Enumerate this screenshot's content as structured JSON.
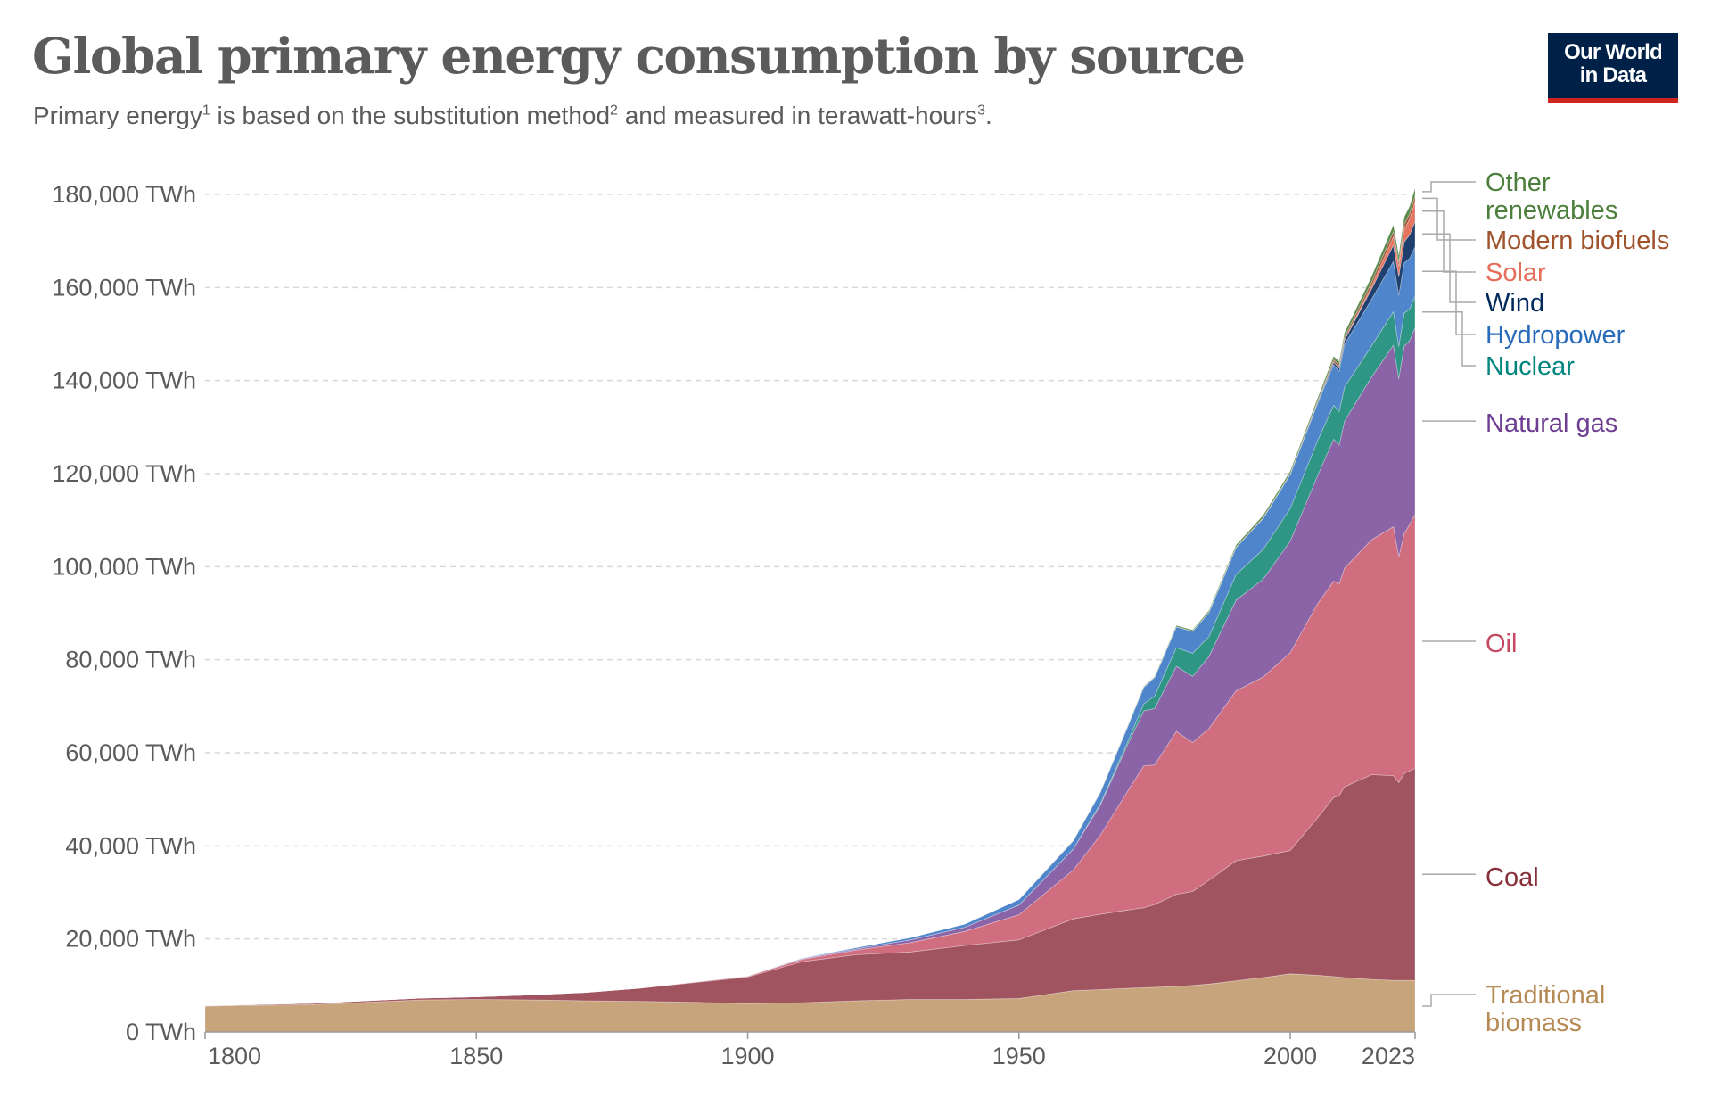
{
  "header": {
    "title": "Global primary energy consumption by source",
    "subtitle_parts": [
      "Primary energy",
      "1",
      " is based on the substitution method",
      "2",
      " and measured in terawatt-hours",
      "3",
      "."
    ],
    "logo_text": [
      "Our World",
      "in Data"
    ]
  },
  "chart_data": {
    "type": "area",
    "stacked": true,
    "title": "Global primary energy consumption by source",
    "xlabel": "",
    "ylabel": "",
    "xlim": [
      1800,
      2023
    ],
    "ylim": [
      0,
      180000
    ],
    "grid": "horizontal dashed",
    "legend": "right, inline labels",
    "y_ticks": [
      {
        "value": 0,
        "label": "0 TWh"
      },
      {
        "value": 20000,
        "label": "20,000 TWh"
      },
      {
        "value": 40000,
        "label": "40,000 TWh"
      },
      {
        "value": 60000,
        "label": "60,000 TWh"
      },
      {
        "value": 80000,
        "label": "80,000 TWh"
      },
      {
        "value": 100000,
        "label": "100,000 TWh"
      },
      {
        "value": 120000,
        "label": "120,000 TWh"
      },
      {
        "value": 140000,
        "label": "140,000 TWh"
      },
      {
        "value": 160000,
        "label": "160,000 TWh"
      },
      {
        "value": 180000,
        "label": "180,000 TWh"
      }
    ],
    "x_ticks": [
      {
        "value": 1800,
        "label": "1800"
      },
      {
        "value": 1850,
        "label": "1850"
      },
      {
        "value": 1900,
        "label": "1900"
      },
      {
        "value": 1950,
        "label": "1950"
      },
      {
        "value": 2000,
        "label": "2000"
      },
      {
        "value": 2023,
        "label": "2023"
      }
    ],
    "x": [
      1800,
      1820,
      1840,
      1850,
      1860,
      1870,
      1880,
      1890,
      1900,
      1910,
      1920,
      1930,
      1940,
      1950,
      1960,
      1965,
      1970,
      1973,
      1975,
      1979,
      1982,
      1985,
      1990,
      1995,
      2000,
      2005,
      2008,
      2009,
      2010,
      2015,
      2019,
      2020,
      2021,
      2022,
      2023
    ],
    "series": [
      {
        "name": "Traditional biomass",
        "label_lines": [
          "Traditional",
          "biomass"
        ],
        "color": "#c8a47c",
        "label_color": "#b58a55",
        "values": [
          5556,
          5900,
          6900,
          7000,
          6900,
          6700,
          6600,
          6400,
          6100,
          6300,
          6700,
          7000,
          7000,
          7200,
          8900,
          9100,
          9400,
          9500,
          9600,
          9800,
          10000,
          10300,
          11000,
          11700,
          12500,
          12200,
          11900,
          11800,
          11700,
          11300,
          11100,
          11100,
          11100,
          11100,
          11111
        ]
      },
      {
        "name": "Coal",
        "label_lines": [
          "Coal"
        ],
        "color": "#a0545f",
        "label_color": "#883039",
        "values": [
          97,
          300,
          400,
          570,
          1100,
          1800,
          2800,
          4200,
          5700,
          8800,
          9900,
          10200,
          11600,
          12600,
          15400,
          16200,
          16800,
          17200,
          17800,
          19800,
          20200,
          22300,
          25800,
          26100,
          26500,
          33800,
          38500,
          39000,
          41000,
          44000,
          44000,
          42500,
          44500,
          45000,
          45565
        ]
      },
      {
        "name": "Oil",
        "label_lines": [
          "Oil"
        ],
        "color": "#d06e80",
        "label_color": "#c44860",
        "values": [
          0,
          0,
          0,
          0,
          0,
          6,
          40,
          90,
          180,
          500,
          1000,
          2000,
          3000,
          5400,
          10500,
          17000,
          25500,
          30500,
          30000,
          35000,
          32000,
          32600,
          36500,
          38500,
          42500,
          46000,
          46500,
          45500,
          47000,
          50500,
          53500,
          48500,
          51500,
          53000,
          54564
        ]
      },
      {
        "name": "Natural gas",
        "label_lines": [
          "Natural gas"
        ],
        "color": "#8b64a8",
        "label_color": "#6d3e91",
        "values": [
          0,
          0,
          0,
          0,
          0,
          0,
          0,
          60,
          64,
          150,
          250,
          600,
          900,
          2100,
          4500,
          6500,
          10000,
          11800,
          12100,
          14000,
          14200,
          15500,
          19500,
          21000,
          24000,
          27500,
          30500,
          29800,
          31600,
          35000,
          39000,
          38300,
          40300,
          39500,
          40102
        ]
      },
      {
        "name": "Nuclear",
        "label_lines": [
          "Nuclear"
        ],
        "color": "#2f9584",
        "label_color": "#00847e",
        "values": [
          0,
          0,
          0,
          0,
          0,
          0,
          0,
          0,
          0,
          0,
          0,
          0,
          0,
          0,
          0,
          250,
          600,
          1500,
          2700,
          4000,
          5000,
          4300,
          5500,
          6400,
          7000,
          7500,
          7300,
          7200,
          7300,
          6700,
          7200,
          6900,
          7100,
          6800,
          6824
        ]
      },
      {
        "name": "Hydropower",
        "label_lines": [
          "Hydropower"
        ],
        "color": "#4f86cb",
        "label_color": "#286bbb",
        "values": [
          0,
          0,
          0,
          0,
          0,
          0,
          0,
          0,
          0,
          150,
          300,
          500,
          700,
          1200,
          1800,
          2500,
          3300,
          3600,
          4000,
          4500,
          4700,
          5200,
          5800,
          6700,
          7300,
          8000,
          8700,
          8700,
          9200,
          10000,
          10800,
          11000,
          10800,
          10900,
          10600
        ]
      },
      {
        "name": "Wind",
        "label_lines": [
          "Wind"
        ],
        "color": "#1f3f6e",
        "label_color": "#00295b",
        "values": [
          0,
          0,
          0,
          0,
          0,
          0,
          0,
          0,
          0,
          0,
          0,
          0,
          0,
          0,
          0,
          0,
          0,
          0,
          0,
          0,
          0,
          0,
          10,
          20,
          80,
          250,
          550,
          700,
          900,
          2200,
          3500,
          4000,
          4500,
          5000,
          5500
        ]
      },
      {
        "name": "Solar",
        "label_lines": [
          "Solar"
        ],
        "color": "#e4745f",
        "label_color": "#e56e5a",
        "values": [
          0,
          0,
          0,
          0,
          0,
          0,
          0,
          0,
          0,
          0,
          0,
          0,
          0,
          0,
          0,
          0,
          0,
          0,
          0,
          0,
          0,
          0,
          0,
          0,
          0,
          10,
          30,
          50,
          90,
          650,
          1800,
          2200,
          2700,
          3400,
          4300
        ]
      },
      {
        "name": "Modern biofuels",
        "label_lines": [
          "Modern biofuels"
        ],
        "color": "#a3573a",
        "label_color": "#a0522d",
        "values": [
          0,
          0,
          0,
          0,
          0,
          0,
          0,
          0,
          0,
          0,
          0,
          0,
          0,
          0,
          0,
          0,
          0,
          0,
          0,
          0,
          0,
          0,
          100,
          100,
          110,
          250,
          500,
          520,
          600,
          850,
          1100,
          1000,
          1100,
          1150,
          1200
        ]
      },
      {
        "name": "Other renewables",
        "label_lines": [
          "Other",
          "renewables"
        ],
        "color": "#5c8a4c",
        "label_color": "#4c7f3b",
        "values": [
          0,
          0,
          0,
          0,
          0,
          0,
          0,
          0,
          0,
          0,
          0,
          0,
          0,
          0,
          50,
          80,
          130,
          160,
          180,
          250,
          300,
          380,
          450,
          500,
          550,
          650,
          750,
          800,
          900,
          1200,
          1450,
          1500,
          1550,
          1600,
          1650
        ]
      }
    ]
  }
}
